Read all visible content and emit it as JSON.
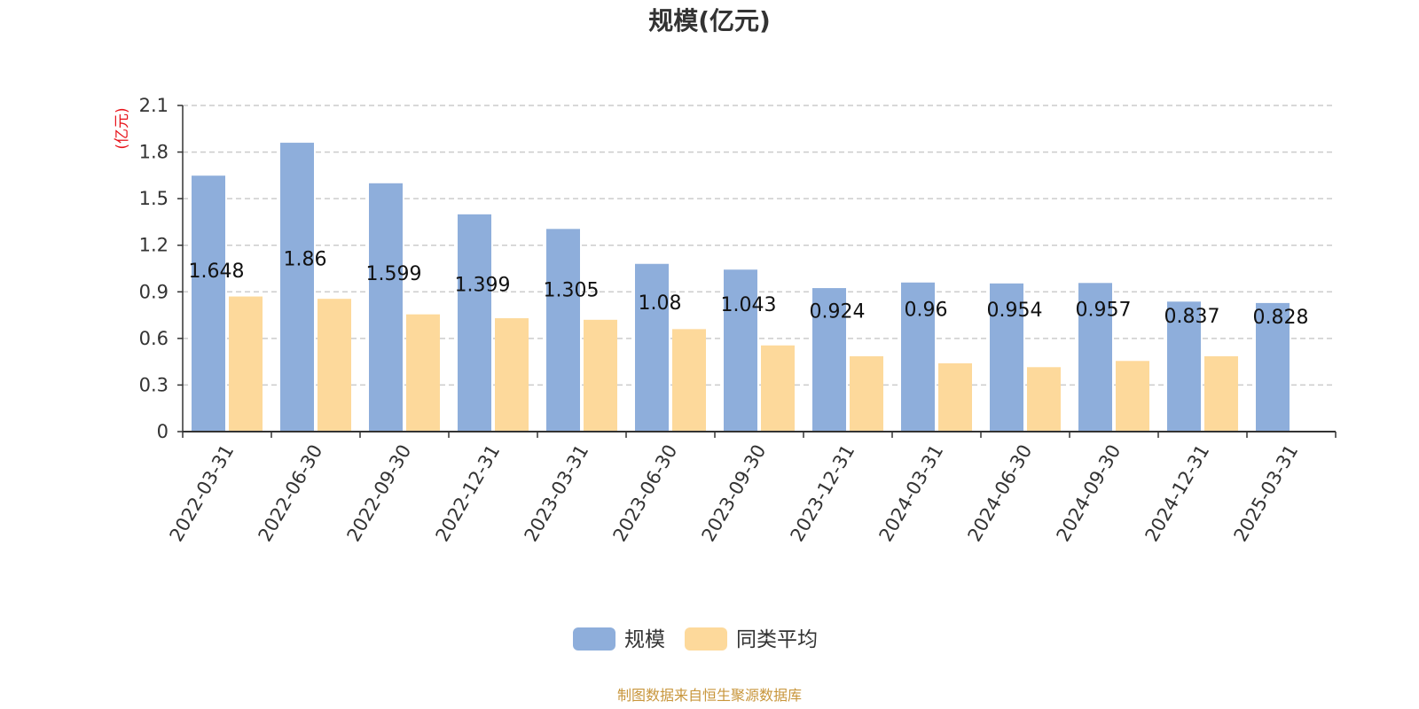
{
  "chart_data": {
    "type": "bar",
    "title": "规模(亿元)",
    "ylabel": "(亿元)",
    "xlabel": "",
    "ylim": [
      0,
      2.1
    ],
    "yticks": [
      "0",
      "0.3",
      "0.6",
      "0.9",
      "1.2",
      "1.5",
      "1.8",
      "2.1"
    ],
    "grid": true,
    "legend_position": "bottom",
    "categories": [
      "2022-03-31",
      "2022-06-30",
      "2022-09-30",
      "2022-12-31",
      "2023-03-31",
      "2023-06-30",
      "2023-09-30",
      "2023-12-31",
      "2024-03-31",
      "2024-06-30",
      "2024-09-30",
      "2024-12-31",
      "2025-03-31"
    ],
    "series": [
      {
        "name": "规模",
        "color": "#8eaedb",
        "values": [
          1.648,
          1.86,
          1.599,
          1.399,
          1.305,
          1.08,
          1.043,
          0.924,
          0.96,
          0.954,
          0.957,
          0.837,
          0.828
        ],
        "labels": [
          "1.648",
          "1.86",
          "1.599",
          "1.399",
          "1.305",
          "1.08",
          "1.043",
          "0.924",
          "0.96",
          "0.954",
          "0.957",
          "0.837",
          "0.828"
        ]
      },
      {
        "name": "同类平均",
        "color": "#fdd99b",
        "values": [
          0.87,
          0.855,
          0.755,
          0.73,
          0.72,
          0.66,
          0.555,
          0.485,
          0.44,
          0.415,
          0.455,
          0.485,
          null
        ]
      }
    ],
    "source": "制图数据来自恒生聚源数据库"
  }
}
